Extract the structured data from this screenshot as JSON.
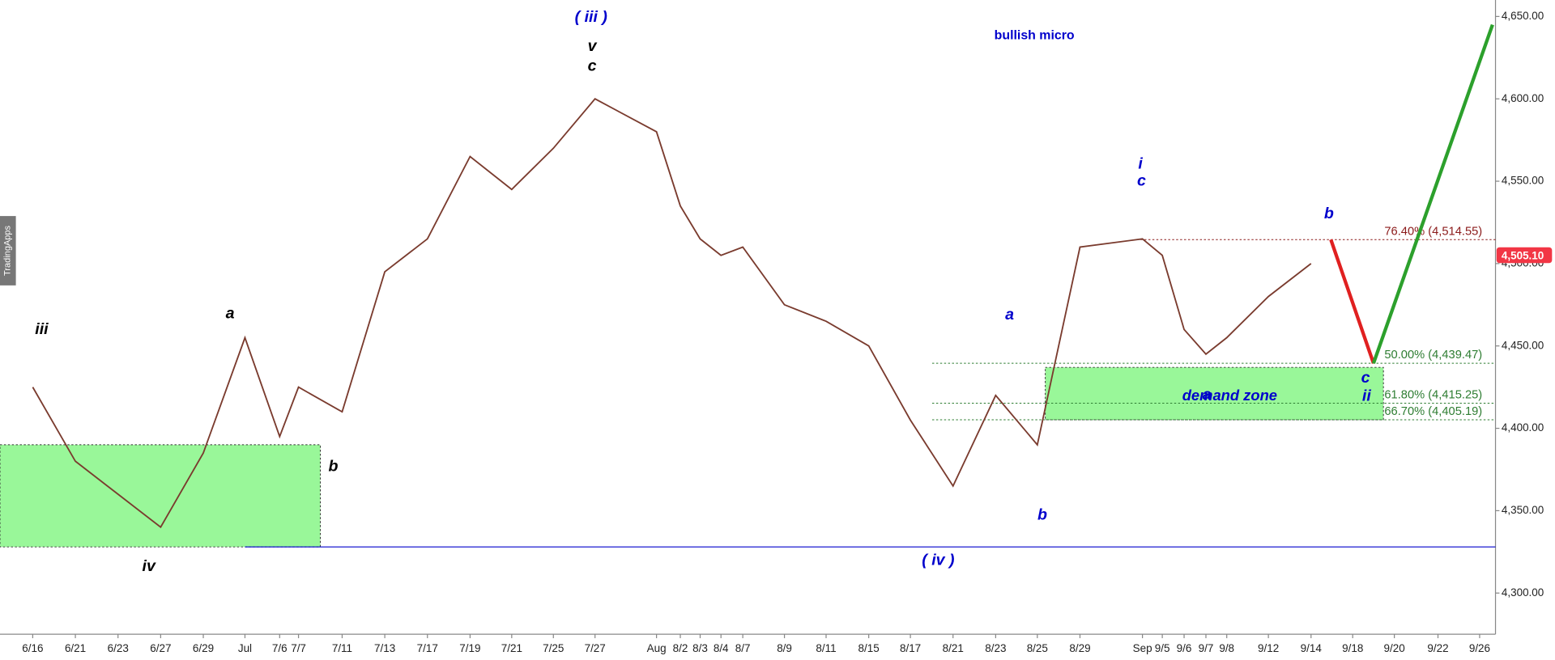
{
  "chart_data": {
    "type": "line",
    "watermark": "TradingApps",
    "categories": [
      "6/16",
      "6/21",
      "6/23",
      "6/27",
      "6/29",
      "Jul",
      "7/6",
      "7/7",
      "7/11",
      "7/13",
      "7/17",
      "7/19",
      "7/21",
      "7/25",
      "7/27",
      "Aug",
      "8/2",
      "8/3",
      "8/4",
      "8/7",
      "8/9",
      "8/11",
      "8/15",
      "8/17",
      "8/21",
      "8/23",
      "8/25",
      "8/29",
      "Sep",
      "9/5",
      "9/6",
      "9/7",
      "9/8",
      "9/12",
      "9/14",
      "9/18",
      "9/20",
      "9/22",
      "9/26"
    ],
    "values": [
      4425,
      4380,
      4360,
      4340,
      4385,
      4455,
      4395,
      4425,
      4410,
      4495,
      4515,
      4565,
      4545,
      4570,
      4600,
      4580,
      4535,
      4515,
      4505,
      4510,
      4475,
      4465,
      4450,
      4405,
      4365,
      4420,
      4390,
      4510,
      4515,
      4505,
      4460,
      4445,
      4455,
      4480,
      4500,
      null,
      null,
      null,
      null
    ],
    "color": "#7a3b2e",
    "ylim": [
      4275,
      4660
    ],
    "yticks": [
      {
        "value": 4300,
        "label": "4,300.00"
      },
      {
        "value": 4350,
        "label": "4,350.00"
      },
      {
        "value": 4400,
        "label": "4,400.00"
      },
      {
        "value": 4450,
        "label": "4,450.00"
      },
      {
        "value": 4500,
        "label": "4,500.00"
      },
      {
        "value": 4550,
        "label": "4,550.00"
      },
      {
        "value": 4600,
        "label": "4,600.00"
      },
      {
        "value": 4650,
        "label": "4,650.00"
      }
    ],
    "last_price": {
      "value": 4505.1,
      "label": "4,505.10",
      "color": "#f23645"
    },
    "fib_levels": [
      {
        "label": "76.40% (4,514.55)",
        "value": 4514.55,
        "color": "#8b1a1a"
      },
      {
        "label": "50.00% (4,439.47)",
        "value": 4439.47,
        "color": "#2e7d32"
      },
      {
        "label": "61.80% (4,415.25)",
        "value": 4415.25,
        "color": "#2e7d32"
      },
      {
        "label": "66.70% (4,405.19)",
        "value": 4405.19,
        "color": "#2e7d32"
      }
    ],
    "zones": [
      {
        "label": "demand zone",
        "range": [
          4405.19,
          4437
        ],
        "color": "#99f799"
      },
      {
        "range": [
          4328,
          4390
        ],
        "color": "#99f799"
      }
    ],
    "support_line": {
      "value": 4328,
      "color": "#0000cc"
    },
    "projections": [
      {
        "color": "#e02020",
        "values": [
          4514.55,
          4439.47
        ]
      },
      {
        "color": "#2ca02c",
        "values": [
          4439.47,
          4645
        ]
      }
    ],
    "annotations": [
      {
        "text": "iii",
        "color": "#000000"
      },
      {
        "text": "a",
        "color": "#000000"
      },
      {
        "text": "b",
        "color": "#000000"
      },
      {
        "text": "iv",
        "color": "#000000"
      },
      {
        "text": "( iii )",
        "color": "#0000cc"
      },
      {
        "text": "v",
        "color": "#000000"
      },
      {
        "text": "c",
        "color": "#000000"
      },
      {
        "text": "( iv )",
        "color": "#0000cc"
      },
      {
        "text": "a",
        "color": "#0000cc"
      },
      {
        "text": "b",
        "color": "#0000cc"
      },
      {
        "text": "i",
        "color": "#0000cc"
      },
      {
        "text": "c",
        "color": "#0000cc"
      },
      {
        "text": "a",
        "color": "#0000cc"
      },
      {
        "text": "b",
        "color": "#0000cc"
      },
      {
        "text": "c",
        "color": "#0000cc"
      },
      {
        "text": "ii",
        "color": "#0000cc"
      },
      {
        "text": "bullish micro",
        "color": "#0000cc"
      }
    ]
  }
}
